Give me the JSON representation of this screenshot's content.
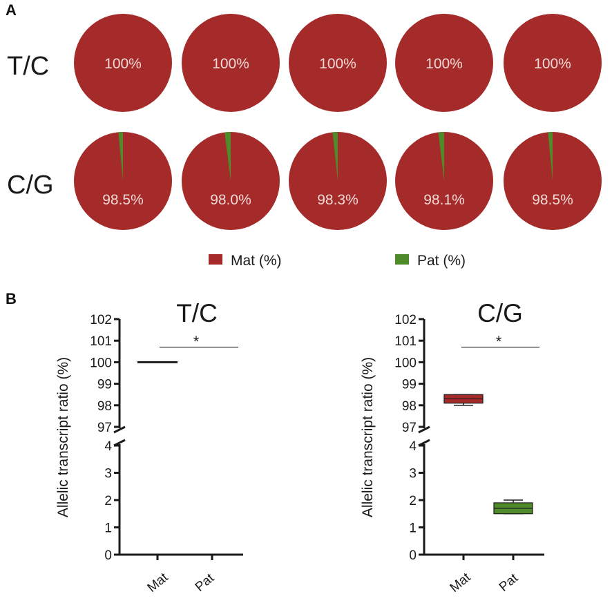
{
  "panels": {
    "a": "A",
    "b": "B"
  },
  "colors": {
    "mat": "#a52a2a",
    "pat": "#4f8a2b",
    "pie_label": "#f2d9d6",
    "axis": "#1a1a1a"
  },
  "chart_data": [
    {
      "type": "pie",
      "panel": "A",
      "rows": [
        {
          "label": "T/C",
          "values_mat": [
            100,
            100,
            100,
            100,
            100
          ],
          "labels": [
            "100%",
            "100%",
            "100%",
            "100%",
            "100%"
          ]
        },
        {
          "label": "C/G",
          "values_mat": [
            98.5,
            98.0,
            98.3,
            98.1,
            98.5
          ],
          "labels": [
            "98.5%",
            "98.0%",
            "98.3%",
            "98.1%",
            "98.5%"
          ]
        }
      ],
      "legend": [
        {
          "name": "Mat (%)",
          "color": "#a52a2a"
        },
        {
          "name": "Pat (%)",
          "color": "#4f8a2b"
        }
      ]
    },
    {
      "type": "box",
      "panel": "B",
      "title": "T/C",
      "ylabel": "Allelic transcript ratio (%)",
      "categories": [
        "Mat",
        "Pat"
      ],
      "y_upper": {
        "ticks": [
          "97",
          "98",
          "99",
          "100",
          "101",
          "102"
        ],
        "range": [
          97,
          102
        ]
      },
      "y_lower": {
        "ticks": [
          "0",
          "1",
          "2",
          "3",
          "4"
        ],
        "range": [
          0,
          4
        ]
      },
      "series": [
        {
          "name": "Mat",
          "min": 100,
          "q1": 100,
          "median": 100,
          "q3": 100,
          "max": 100
        },
        {
          "name": "Pat",
          "min": 0,
          "q1": 0,
          "median": 0,
          "q3": 0,
          "max": 0
        }
      ],
      "annotation": "*"
    },
    {
      "type": "box",
      "panel": "B",
      "title": "C/G",
      "ylabel": "Allelic transcript ratio (%)",
      "categories": [
        "Mat",
        "Pat"
      ],
      "y_upper": {
        "ticks": [
          "97",
          "98",
          "99",
          "100",
          "101",
          "102"
        ],
        "range": [
          97,
          102
        ]
      },
      "y_lower": {
        "ticks": [
          "0",
          "1",
          "2",
          "3",
          "4"
        ],
        "range": [
          0,
          4
        ]
      },
      "series": [
        {
          "name": "Mat",
          "min": 98.0,
          "q1": 98.1,
          "median": 98.3,
          "q3": 98.5,
          "max": 98.5
        },
        {
          "name": "Pat",
          "min": 1.5,
          "q1": 1.5,
          "median": 1.7,
          "q3": 1.9,
          "max": 2.0
        }
      ],
      "annotation": "*"
    }
  ]
}
